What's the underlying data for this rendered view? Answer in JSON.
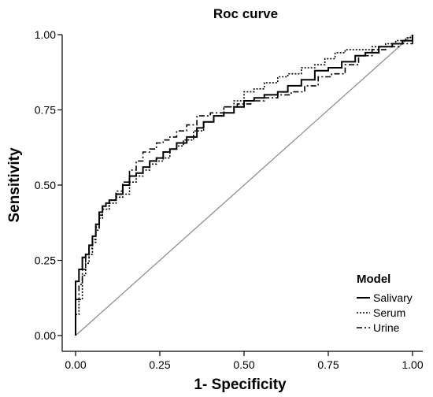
{
  "chart_data": {
    "type": "line",
    "title": "Roc curve",
    "xlabel": "1- Specificity",
    "ylabel": "Sensitivity",
    "xlim": [
      0,
      1
    ],
    "ylim": [
      0,
      1
    ],
    "x_ticks": [
      "0.00",
      "0.25",
      "0.50",
      "0.75",
      "1.00"
    ],
    "y_ticks": [
      "0.00",
      "0.25",
      "0.50",
      "0.75",
      "1.00"
    ],
    "grid": false,
    "legend": {
      "title": "Model",
      "position": "bottom-right"
    },
    "reference_line": {
      "x": [
        0,
        1
      ],
      "y": [
        0,
        1
      ],
      "color": "#888888"
    },
    "series": [
      {
        "name": "Salivary",
        "style": "solid",
        "color": "#000000",
        "x": [
          0,
          0,
          0.01,
          0.01,
          0.02,
          0.02,
          0.03,
          0.04,
          0.05,
          0.06,
          0.07,
          0.08,
          0.09,
          0.1,
          0.12,
          0.14,
          0.16,
          0.18,
          0.2,
          0.22,
          0.24,
          0.26,
          0.28,
          0.3,
          0.33,
          0.36,
          0.38,
          0.41,
          0.44,
          0.47,
          0.5,
          0.53,
          0.56,
          0.6,
          0.63,
          0.67,
          0.71,
          0.75,
          0.79,
          0.83,
          0.86,
          0.9,
          0.94,
          0.97,
          1.0
        ],
        "y": [
          0,
          0.18,
          0.2,
          0.22,
          0.24,
          0.26,
          0.27,
          0.3,
          0.33,
          0.37,
          0.41,
          0.43,
          0.44,
          0.45,
          0.47,
          0.5,
          0.53,
          0.54,
          0.56,
          0.58,
          0.59,
          0.61,
          0.62,
          0.64,
          0.66,
          0.69,
          0.71,
          0.73,
          0.74,
          0.76,
          0.78,
          0.79,
          0.8,
          0.81,
          0.83,
          0.85,
          0.88,
          0.89,
          0.91,
          0.93,
          0.94,
          0.96,
          0.97,
          0.98,
          1.0
        ]
      },
      {
        "name": "Serum",
        "style": "dotted",
        "color": "#000000",
        "x": [
          0,
          0.01,
          0.02,
          0.02,
          0.03,
          0.04,
          0.05,
          0.06,
          0.07,
          0.08,
          0.1,
          0.12,
          0.14,
          0.16,
          0.18,
          0.2,
          0.22,
          0.24,
          0.26,
          0.28,
          0.3,
          0.32,
          0.35,
          0.38,
          0.41,
          0.44,
          0.47,
          0.5,
          0.53,
          0.56,
          0.6,
          0.63,
          0.67,
          0.71,
          0.74,
          0.77,
          0.8,
          0.84,
          0.88,
          0.92,
          0.95,
          0.98,
          1.0
        ],
        "y": [
          0.07,
          0.12,
          0.17,
          0.2,
          0.24,
          0.27,
          0.31,
          0.36,
          0.39,
          0.42,
          0.44,
          0.46,
          0.47,
          0.51,
          0.53,
          0.55,
          0.57,
          0.58,
          0.59,
          0.62,
          0.63,
          0.65,
          0.68,
          0.71,
          0.73,
          0.76,
          0.78,
          0.81,
          0.82,
          0.84,
          0.86,
          0.87,
          0.89,
          0.9,
          0.92,
          0.94,
          0.95,
          0.95,
          0.96,
          0.97,
          0.98,
          0.99,
          1.0
        ]
      },
      {
        "name": "Urine",
        "style": "dashdot",
        "color": "#000000",
        "x": [
          0,
          0.01,
          0.02,
          0.03,
          0.04,
          0.05,
          0.06,
          0.07,
          0.08,
          0.1,
          0.12,
          0.14,
          0.16,
          0.18,
          0.2,
          0.22,
          0.24,
          0.26,
          0.28,
          0.3,
          0.33,
          0.36,
          0.4,
          0.44,
          0.48,
          0.52,
          0.56,
          0.6,
          0.64,
          0.68,
          0.72,
          0.76,
          0.8,
          0.84,
          0.88,
          0.92,
          0.96,
          1.0
        ],
        "y": [
          0.12,
          0.17,
          0.22,
          0.26,
          0.29,
          0.32,
          0.35,
          0.4,
          0.43,
          0.45,
          0.48,
          0.51,
          0.55,
          0.58,
          0.61,
          0.62,
          0.64,
          0.65,
          0.66,
          0.68,
          0.7,
          0.73,
          0.74,
          0.76,
          0.77,
          0.78,
          0.79,
          0.8,
          0.81,
          0.83,
          0.86,
          0.87,
          0.9,
          0.93,
          0.95,
          0.96,
          0.97,
          1.0
        ]
      }
    ]
  }
}
